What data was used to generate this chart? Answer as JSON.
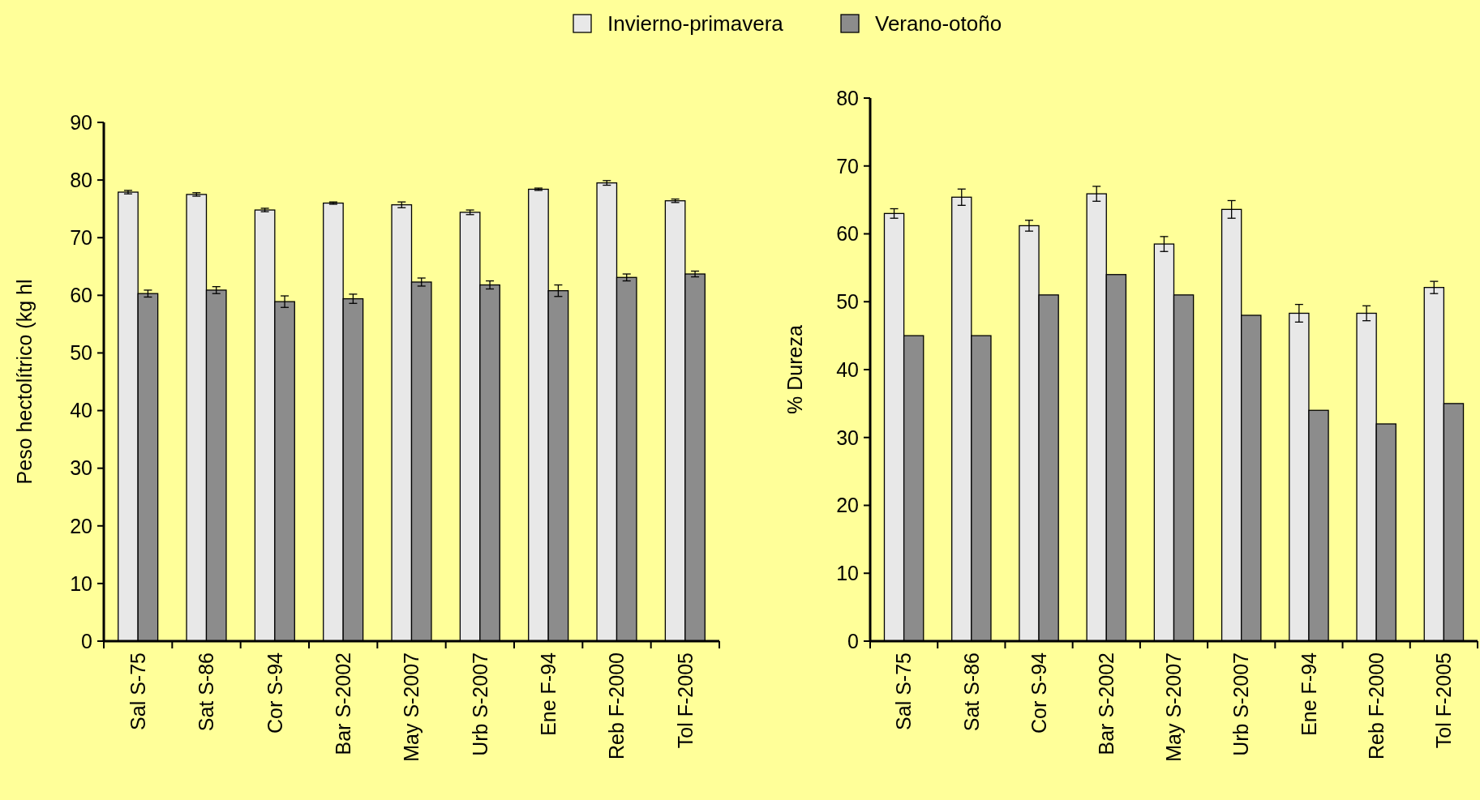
{
  "chart_data": [
    {
      "type": "bar",
      "ylabel": "Peso hectolítrico (kg hl",
      "categories": [
        "Sal S-75",
        "Sat S-86",
        "Cor S-94",
        "Bar S-2002",
        "May S-2007",
        "Urb S-2007",
        "Ene F-94",
        "Reb F-2000",
        "Tol F-2005"
      ],
      "ylim": [
        0,
        90
      ],
      "yticks": [
        0,
        10,
        20,
        30,
        40,
        50,
        60,
        70,
        80,
        90
      ],
      "legend": "top",
      "series": [
        {
          "name": "Invierno-primavera",
          "color": "#e8e8e8",
          "values": [
            77.9,
            77.5,
            74.8,
            76.0,
            75.7,
            74.4,
            78.4,
            79.5,
            76.4
          ],
          "errors": [
            0.3,
            0.3,
            0.3,
            0.2,
            0.5,
            0.4,
            0.2,
            0.4,
            0.3
          ]
        },
        {
          "name": "Verano-otoño",
          "color": "#8c8c8c",
          "values": [
            60.3,
            60.9,
            58.9,
            59.4,
            62.3,
            61.8,
            60.8,
            63.1,
            63.7
          ],
          "errors": [
            0.6,
            0.6,
            1.0,
            0.8,
            0.7,
            0.7,
            1.0,
            0.6,
            0.5
          ]
        }
      ]
    },
    {
      "type": "bar",
      "ylabel": "% Dureza",
      "categories": [
        "Sal S-75",
        "Sat S-86",
        "Cor S-94",
        "Bar S-2002",
        "May S-2007",
        "Urb S-2007",
        "Ene F-94",
        "Reb F-2000",
        "Tol F-2005"
      ],
      "ylim": [
        0,
        80
      ],
      "yticks": [
        0,
        10,
        20,
        30,
        40,
        50,
        60,
        70,
        80
      ],
      "series": [
        {
          "color": "#e8e8e8",
          "values": [
            63.0,
            65.4,
            61.2,
            65.9,
            58.5,
            63.6,
            48.3,
            48.3,
            52.1
          ],
          "errors": [
            0.7,
            1.2,
            0.8,
            1.1,
            1.1,
            1.3,
            1.3,
            1.1,
            0.9
          ]
        },
        {
          "color": "#8c8c8c",
          "values": [
            45,
            45,
            51,
            54,
            51,
            48,
            34,
            32,
            35
          ]
        }
      ]
    }
  ]
}
